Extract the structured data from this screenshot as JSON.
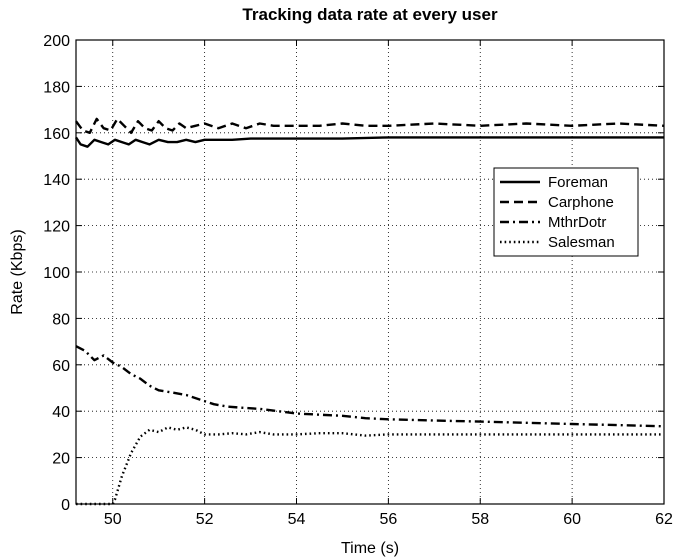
{
  "chart_data": {
    "type": "line",
    "title": "Tracking data rate at every user",
    "xlabel": "Time (s)",
    "ylabel": "Rate (Kbps)",
    "xlim": [
      49.2,
      62
    ],
    "ylim": [
      0,
      200
    ],
    "xticks": [
      50,
      52,
      54,
      56,
      58,
      60,
      62
    ],
    "yticks": [
      0,
      20,
      40,
      60,
      80,
      100,
      120,
      140,
      160,
      180,
      200
    ],
    "grid": true,
    "legend_position": "right",
    "series": [
      {
        "name": "Foreman",
        "style": "solid",
        "color": "#000000",
        "x": [
          49.2,
          49.3,
          49.45,
          49.6,
          49.75,
          49.9,
          50.05,
          50.2,
          50.35,
          50.5,
          50.65,
          50.8,
          51.0,
          51.2,
          51.4,
          51.6,
          51.8,
          52.0,
          52.3,
          52.6,
          53.0,
          53.5,
          54.0,
          54.5,
          55.0,
          56.0,
          57.0,
          58.0,
          59.0,
          60.0,
          61.0,
          62.0
        ],
        "y": [
          158,
          155,
          154,
          157,
          156,
          155,
          157,
          156,
          155,
          157,
          156,
          155,
          157,
          156,
          156,
          157,
          156,
          157,
          157,
          157,
          157.5,
          157.5,
          157.5,
          157.5,
          157.5,
          158,
          158,
          158,
          158,
          158,
          158,
          158
        ]
      },
      {
        "name": "Carphone",
        "style": "dashed",
        "color": "#000000",
        "x": [
          49.2,
          49.35,
          49.5,
          49.65,
          49.8,
          49.95,
          50.1,
          50.25,
          50.4,
          50.55,
          50.7,
          50.85,
          51.0,
          51.15,
          51.3,
          51.45,
          51.6,
          51.8,
          52.0,
          52.3,
          52.6,
          52.9,
          53.2,
          53.5,
          54.0,
          54.5,
          55.0,
          55.5,
          56.0,
          57.0,
          58.0,
          59.0,
          60.0,
          61.0,
          62.0
        ],
        "y": [
          165,
          161,
          160,
          166,
          162,
          161,
          166,
          163,
          160,
          165,
          162,
          161,
          165,
          162,
          161,
          164,
          162,
          163,
          164,
          162,
          164,
          162,
          164,
          163,
          163,
          163,
          164,
          163,
          163,
          164,
          163,
          164,
          163,
          164,
          163
        ]
      },
      {
        "name": "MthrDotr",
        "style": "dashdot",
        "color": "#000000",
        "x": [
          49.2,
          49.4,
          49.6,
          49.8,
          50.0,
          50.2,
          50.4,
          50.6,
          50.8,
          51.0,
          51.3,
          51.6,
          51.9,
          52.2,
          52.5,
          52.8,
          53.2,
          53.6,
          54.0,
          54.5,
          55.0,
          55.5,
          56.0,
          57.0,
          58.0,
          59.0,
          60.0,
          61.0,
          62.0
        ],
        "y": [
          68,
          66,
          62,
          64,
          61,
          59,
          56,
          54,
          51,
          49,
          48,
          47,
          45,
          43,
          42,
          41.5,
          41,
          40,
          39,
          38.5,
          38,
          37,
          36.5,
          36,
          35.5,
          35,
          34.5,
          34,
          33.5
        ]
      },
      {
        "name": "Salesman",
        "style": "dotted",
        "color": "#000000",
        "x": [
          49.2,
          49.5,
          49.8,
          50.0,
          50.05,
          50.2,
          50.4,
          50.6,
          50.8,
          51.0,
          51.2,
          51.4,
          51.6,
          51.8,
          52.0,
          52.3,
          52.6,
          52.9,
          53.2,
          53.5,
          54.0,
          54.5,
          55.0,
          55.5,
          56.0,
          57.0,
          58.0,
          59.0,
          60.0,
          61.0,
          62.0
        ],
        "y": [
          0,
          0,
          0,
          0,
          2,
          12,
          22,
          29,
          32,
          31,
          33,
          32,
          33,
          32,
          30,
          30,
          30.5,
          30,
          31,
          30,
          30,
          30.5,
          30.5,
          29.5,
          30,
          30,
          30,
          30,
          30,
          30,
          30
        ]
      }
    ]
  }
}
